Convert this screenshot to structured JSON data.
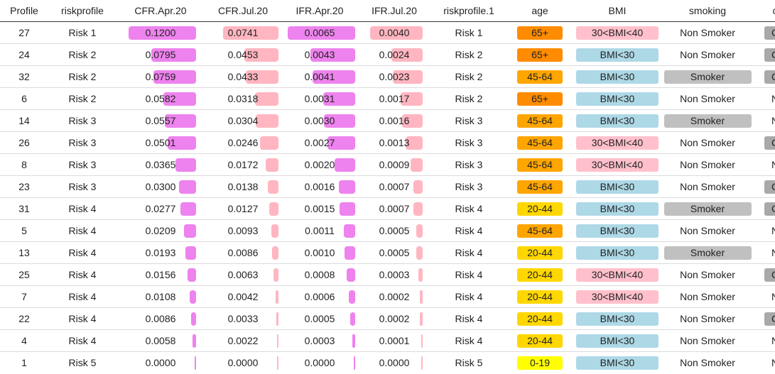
{
  "columns": [
    "Profile",
    "riskprofile",
    "CFR.Apr.20",
    "CFR.Jul.20",
    "IFR.Apr.20",
    "IFR.Jul.20",
    "riskprofile.1",
    "age",
    "BMI",
    "smoking",
    "co"
  ],
  "colors": {
    "cfr_apr": "#ee82ee",
    "cfr_jul": "#ffb6c1",
    "ifr_apr": "#ee82ee",
    "ifr_jul": "#ffb6c1",
    "age_65plus": "#ff8c00",
    "age_45_64": "#ffa500",
    "age_20_44": "#ffd700",
    "age_0_19": "#ffff00",
    "bmi_30_40": "#ffc0cb",
    "bmi_lt30": "#add8e6",
    "smoker": "#c0c0c0",
    "co_pill": "#a9a9a9"
  },
  "rows": [
    {
      "profile": "27",
      "risk": "Risk 1",
      "cfr_apr": "0.1200",
      "cfr_jul": "0.0741",
      "ifr_apr": "0.0065",
      "ifr_jul": "0.0040",
      "risk1": "Risk 1",
      "age": "65+",
      "bmi": "30<BMI<40",
      "smoking": "Non Smoker",
      "co": "C",
      "co_pill": true
    },
    {
      "profile": "24",
      "risk": "Risk 2",
      "cfr_apr": "0.0795",
      "cfr_jul": "0.0453",
      "ifr_apr": "0.0043",
      "ifr_jul": "0.0024",
      "risk1": "Risk 2",
      "age": "65+",
      "bmi": "BMI<30",
      "smoking": "Non Smoker",
      "co": "C",
      "co_pill": true
    },
    {
      "profile": "32",
      "risk": "Risk 2",
      "cfr_apr": "0.0759",
      "cfr_jul": "0.0433",
      "ifr_apr": "0.0041",
      "ifr_jul": "0.0023",
      "risk1": "Risk 2",
      "age": "45-64",
      "bmi": "BMI<30",
      "smoking": "Smoker",
      "co": "C",
      "co_pill": true
    },
    {
      "profile": "6",
      "risk": "Risk 2",
      "cfr_apr": "0.0582",
      "cfr_jul": "0.0318",
      "ifr_apr": "0.0031",
      "ifr_jul": "0.0017",
      "risk1": "Risk 2",
      "age": "65+",
      "bmi": "BMI<30",
      "smoking": "Non Smoker",
      "co": "No",
      "co_pill": false
    },
    {
      "profile": "14",
      "risk": "Risk 3",
      "cfr_apr": "0.0557",
      "cfr_jul": "0.0304",
      "ifr_apr": "0.0030",
      "ifr_jul": "0.0016",
      "risk1": "Risk 3",
      "age": "45-64",
      "bmi": "BMI<30",
      "smoking": "Smoker",
      "co": "No",
      "co_pill": false
    },
    {
      "profile": "26",
      "risk": "Risk 3",
      "cfr_apr": "0.0501",
      "cfr_jul": "0.0246",
      "ifr_apr": "0.0027",
      "ifr_jul": "0.0013",
      "risk1": "Risk 3",
      "age": "45-64",
      "bmi": "30<BMI<40",
      "smoking": "Non Smoker",
      "co": "C",
      "co_pill": true
    },
    {
      "profile": "8",
      "risk": "Risk 3",
      "cfr_apr": "0.0365",
      "cfr_jul": "0.0172",
      "ifr_apr": "0.0020",
      "ifr_jul": "0.0009",
      "risk1": "Risk 3",
      "age": "45-64",
      "bmi": "30<BMI<40",
      "smoking": "Non Smoker",
      "co": "No",
      "co_pill": false
    },
    {
      "profile": "23",
      "risk": "Risk 3",
      "cfr_apr": "0.0300",
      "cfr_jul": "0.0138",
      "ifr_apr": "0.0016",
      "ifr_jul": "0.0007",
      "risk1": "Risk 3",
      "age": "45-64",
      "bmi": "BMI<30",
      "smoking": "Non Smoker",
      "co": "C",
      "co_pill": true
    },
    {
      "profile": "31",
      "risk": "Risk 4",
      "cfr_apr": "0.0277",
      "cfr_jul": "0.0127",
      "ifr_apr": "0.0015",
      "ifr_jul": "0.0007",
      "risk1": "Risk 4",
      "age": "20-44",
      "bmi": "BMI<30",
      "smoking": "Smoker",
      "co": "C",
      "co_pill": true
    },
    {
      "profile": "5",
      "risk": "Risk 4",
      "cfr_apr": "0.0209",
      "cfr_jul": "0.0093",
      "ifr_apr": "0.0011",
      "ifr_jul": "0.0005",
      "risk1": "Risk 4",
      "age": "45-64",
      "bmi": "BMI<30",
      "smoking": "Non Smoker",
      "co": "No",
      "co_pill": false
    },
    {
      "profile": "13",
      "risk": "Risk 4",
      "cfr_apr": "0.0193",
      "cfr_jul": "0.0086",
      "ifr_apr": "0.0010",
      "ifr_jul": "0.0005",
      "risk1": "Risk 4",
      "age": "20-44",
      "bmi": "BMI<30",
      "smoking": "Smoker",
      "co": "No",
      "co_pill": false
    },
    {
      "profile": "25",
      "risk": "Risk 4",
      "cfr_apr": "0.0156",
      "cfr_jul": "0.0063",
      "ifr_apr": "0.0008",
      "ifr_jul": "0.0003",
      "risk1": "Risk 4",
      "age": "20-44",
      "bmi": "30<BMI<40",
      "smoking": "Non Smoker",
      "co": "C",
      "co_pill": true
    },
    {
      "profile": "7",
      "risk": "Risk 4",
      "cfr_apr": "0.0108",
      "cfr_jul": "0.0042",
      "ifr_apr": "0.0006",
      "ifr_jul": "0.0002",
      "risk1": "Risk 4",
      "age": "20-44",
      "bmi": "30<BMI<40",
      "smoking": "Non Smoker",
      "co": "No",
      "co_pill": false
    },
    {
      "profile": "22",
      "risk": "Risk 4",
      "cfr_apr": "0.0086",
      "cfr_jul": "0.0033",
      "ifr_apr": "0.0005",
      "ifr_jul": "0.0002",
      "risk1": "Risk 4",
      "age": "20-44",
      "bmi": "BMI<30",
      "smoking": "Non Smoker",
      "co": "C",
      "co_pill": true
    },
    {
      "profile": "4",
      "risk": "Risk 4",
      "cfr_apr": "0.0058",
      "cfr_jul": "0.0022",
      "ifr_apr": "0.0003",
      "ifr_jul": "0.0001",
      "risk1": "Risk 4",
      "age": "20-44",
      "bmi": "BMI<30",
      "smoking": "Non Smoker",
      "co": "No",
      "co_pill": false
    },
    {
      "profile": "1",
      "risk": "Risk 5",
      "cfr_apr": "0.0000",
      "cfr_jul": "0.0000",
      "ifr_apr": "0.0000",
      "ifr_jul": "0.0000",
      "risk1": "Risk 5",
      "age": "0-19",
      "bmi": "BMI<30",
      "smoking": "Non Smoker",
      "co": "No",
      "co_pill": false
    }
  ]
}
